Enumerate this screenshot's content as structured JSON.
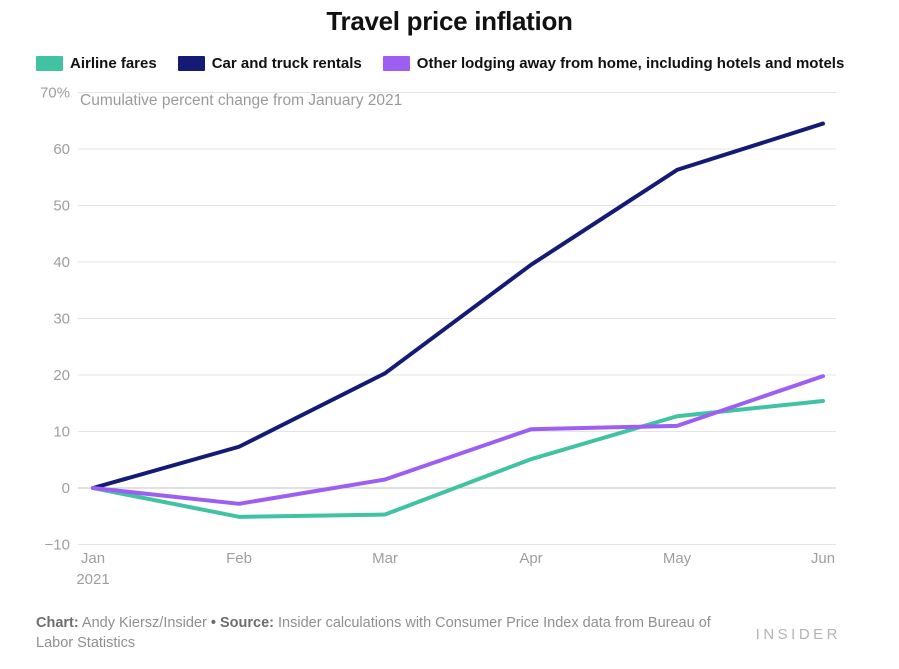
{
  "title": "Travel price inflation",
  "subtitle": "Cumulative percent change from January 2021",
  "chart_data": {
    "type": "line",
    "categories": [
      "Jan",
      "Feb",
      "Mar",
      "Apr",
      "May",
      "Jun"
    ],
    "x_year_label": "2021",
    "series": [
      {
        "key": "airline-fares",
        "name": "Airline fares",
        "color": "#41c2a2",
        "values": [
          0,
          -5.1,
          -4.7,
          5.1,
          12.7,
          15.4
        ]
      },
      {
        "key": "car-and-truck-rentals",
        "name": "Car and truck rentals",
        "color": "#131b75",
        "values": [
          0,
          7.3,
          20.3,
          39.5,
          56.3,
          64.5
        ]
      },
      {
        "key": "other-lodging",
        "name": "Other lodging away from home, including hotels and motels",
        "color": "#9d5ef2",
        "values": [
          0,
          -2.8,
          1.5,
          10.4,
          11.0,
          19.8
        ]
      }
    ],
    "yticks": [
      {
        "v": -10,
        "label": "−10"
      },
      {
        "v": 0,
        "label": "0"
      },
      {
        "v": 10,
        "label": "10"
      },
      {
        "v": 20,
        "label": "20"
      },
      {
        "v": 30,
        "label": "30"
      },
      {
        "v": 40,
        "label": "40"
      },
      {
        "v": 50,
        "label": "50"
      },
      {
        "v": 60,
        "label": "60"
      },
      {
        "v": 70,
        "label": "70%"
      }
    ],
    "ylim": [
      -10,
      70
    ],
    "grid": true,
    "legend_position": "top",
    "colors": {
      "gridline": "#e4e4e4",
      "zeroline": "#c2c2c2",
      "tick_text": "#9e9e9e"
    }
  },
  "footer": {
    "chart_label": "Chart:",
    "chart_value": " Andy Kiersz/Insider ",
    "bullet": "• ",
    "source_label": "Source:",
    "source_value": " Insider calculations with Consumer Price Index data from Bureau of Labor Statistics",
    "logo": "INSIDER"
  }
}
